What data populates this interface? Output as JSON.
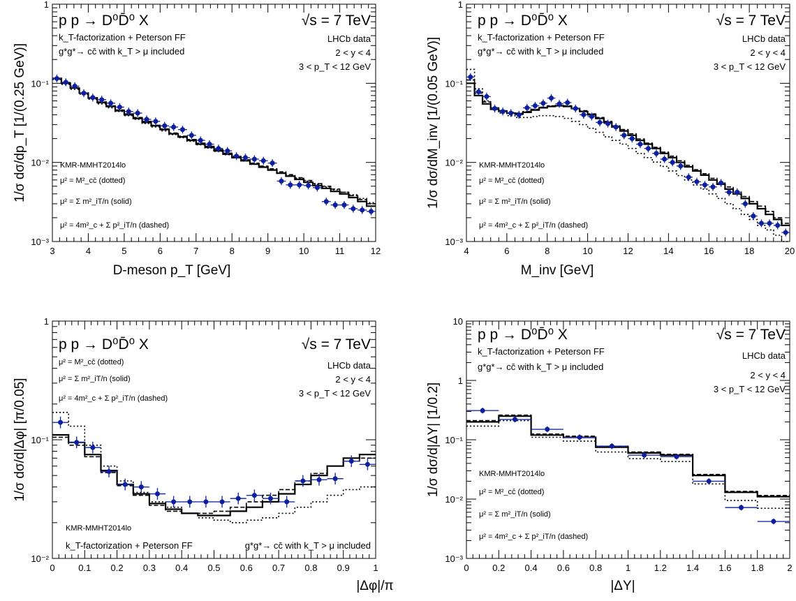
{
  "chart_data": [
    {
      "id": "pt",
      "type": "line",
      "xlabel": "D-meson p_T   [GeV]",
      "ylabel": "1/σ  dσ/dp_T   [1/(0.25 GeV)]",
      "xlim": [
        3,
        12
      ],
      "ylim": [
        0.001,
        1
      ],
      "yscale": "log",
      "xticks": [
        3,
        4,
        5,
        6,
        7,
        8,
        9,
        10,
        11,
        12
      ],
      "yticks": [
        0.001,
        0.01,
        0.1,
        1
      ],
      "ytick_labels": [
        "10⁻³",
        "10⁻²",
        "10⁻¹",
        "1"
      ],
      "grid": false,
      "annotations": {
        "process": "p p → D⁰D̄⁰ X",
        "energy": "√s = 7 TeV",
        "model_line1": "k_T-factorization + Peterson FF",
        "model_line2": "g*g*→ cc̄ with k_T > μ included",
        "data_label": "LHCb data",
        "cut_y": "2 < y < 4",
        "cut_pt": "3 < p_T < 12 GeV",
        "pdf": "KMR-MMHT2014lo",
        "scale1": "μ² = M²_cc̄ (dotted)",
        "scale2": "μ² = Σ m²_iT/n (solid)",
        "scale3": "μ² = 4m²_c + Σ p²_iT/n (dashed)"
      },
      "data": {
        "x": [
          3.125,
          3.375,
          3.625,
          3.875,
          4.125,
          4.375,
          4.625,
          4.875,
          5.125,
          5.375,
          5.625,
          5.875,
          6.125,
          6.375,
          6.625,
          6.875,
          7.125,
          7.375,
          7.625,
          7.875,
          8.125,
          8.375,
          8.625,
          8.875,
          9.125,
          9.375,
          9.625,
          9.875,
          10.125,
          10.375,
          10.625,
          10.875,
          11.125,
          11.375,
          11.625,
          11.875
        ],
        "y": [
          0.115,
          0.103,
          0.092,
          0.075,
          0.066,
          0.062,
          0.056,
          0.05,
          0.044,
          0.042,
          0.035,
          0.033,
          0.029,
          0.028,
          0.026,
          0.022,
          0.019,
          0.017,
          0.015,
          0.014,
          0.012,
          0.0115,
          0.011,
          0.0105,
          0.0098,
          0.0058,
          0.0052,
          0.0052,
          0.0051,
          0.0048,
          0.0032,
          0.0029,
          0.0029,
          0.0026,
          0.0025,
          0.0024
        ],
        "xerr": 0.125
      },
      "series": [
        {
          "style": "solid",
          "values": [
            0.115,
            0.1,
            0.087,
            0.075,
            0.065,
            0.057,
            0.051,
            0.045,
            0.04,
            0.036,
            0.032,
            0.029,
            0.026,
            0.023,
            0.021,
            0.019,
            0.017,
            0.0155,
            0.014,
            0.0127,
            0.0115,
            0.0105,
            0.0095,
            0.0087,
            0.008,
            0.0073,
            0.0067,
            0.0061,
            0.0056,
            0.0051,
            0.0047,
            0.0043,
            0.004,
            0.0036,
            0.0032,
            0.0028
          ]
        },
        {
          "style": "dashed",
          "values": [
            0.116,
            0.101,
            0.088,
            0.076,
            0.066,
            0.058,
            0.052,
            0.046,
            0.041,
            0.037,
            0.033,
            0.0295,
            0.0265,
            0.0235,
            0.0215,
            0.0195,
            0.0175,
            0.016,
            0.0145,
            0.0131,
            0.0119,
            0.0108,
            0.0098,
            0.009,
            0.0083,
            0.0076,
            0.007,
            0.0064,
            0.0059,
            0.0054,
            0.005,
            0.0046,
            0.0042,
            0.0038,
            0.0034,
            0.003
          ]
        },
        {
          "style": "dotted",
          "values": [
            0.112,
            0.097,
            0.084,
            0.073,
            0.063,
            0.055,
            0.049,
            0.044,
            0.039,
            0.035,
            0.031,
            0.028,
            0.025,
            0.0225,
            0.0205,
            0.0185,
            0.0167,
            0.0152,
            0.0138,
            0.0125,
            0.0114,
            0.0104,
            0.0095,
            0.0087,
            0.008,
            0.0074,
            0.0068,
            0.0063,
            0.0058,
            0.0053,
            0.0049,
            0.0045,
            0.0042,
            0.0039,
            0.0035,
            0.0031
          ]
        }
      ]
    },
    {
      "id": "minv",
      "type": "line",
      "xlabel": "M_inv   [GeV]",
      "ylabel": "1/σ  dσ/dM_inv   [1/(0.05 GeV)]",
      "xlim": [
        4,
        20
      ],
      "ylim": [
        0.001,
        1
      ],
      "yscale": "log",
      "xticks": [
        4,
        6,
        8,
        10,
        12,
        14,
        16,
        18,
        20
      ],
      "yticks": [
        0.001,
        0.01,
        0.1,
        1
      ],
      "ytick_labels": [
        "10⁻³",
        "10⁻²",
        "10⁻¹",
        "1"
      ],
      "grid": false,
      "annotations": {
        "process": "p p → D⁰D̄⁰ X",
        "energy": "√s = 7 TeV",
        "model_line1": "k_T-factorization + Peterson FF",
        "model_line2": "g*g*→ cc̄ with k_T > μ included",
        "data_label": "LHCb data",
        "cut_y": "2 < y < 4",
        "cut_pt": "3 < p_T < 12 GeV",
        "pdf": "KMR-MMHT2014lo",
        "scale1": "μ² = M²_cc̄ (dotted)",
        "scale2": "μ² = Σ m²_iT/n (solid)",
        "scale3": "μ² = 4m²_c + Σ p²_iT/n (dashed)"
      },
      "data": {
        "x": [
          4.2,
          4.6,
          5.0,
          5.4,
          5.8,
          6.2,
          6.6,
          7.0,
          7.4,
          7.8,
          8.2,
          8.6,
          9.0,
          9.4,
          9.8,
          10.2,
          10.6,
          11.0,
          11.4,
          11.8,
          12.2,
          12.6,
          13.0,
          13.4,
          13.8,
          14.2,
          14.6,
          15.0,
          15.4,
          15.8,
          16.2,
          16.6,
          17.0,
          17.4,
          17.8,
          18.2,
          18.6,
          19.0,
          19.4,
          19.8
        ],
        "y": [
          0.12,
          0.078,
          0.068,
          0.048,
          0.044,
          0.042,
          0.04,
          0.049,
          0.052,
          0.056,
          0.065,
          0.055,
          0.057,
          0.048,
          0.04,
          0.038,
          0.032,
          0.031,
          0.028,
          0.022,
          0.02,
          0.017,
          0.015,
          0.013,
          0.011,
          0.01,
          0.009,
          0.0065,
          0.0057,
          0.0052,
          0.0049,
          0.0055,
          0.0042,
          0.0042,
          0.003,
          0.0021,
          0.0017,
          0.0017,
          0.0016,
          0.0013
        ],
        "xerr": 0.2
      },
      "series": [
        {
          "style": "solid",
          "values": [
            0.1,
            0.07,
            0.055,
            0.047,
            0.044,
            0.042,
            0.041,
            0.043,
            0.046,
            0.049,
            0.051,
            0.052,
            0.051,
            0.048,
            0.044,
            0.04,
            0.036,
            0.032,
            0.028,
            0.025,
            0.022,
            0.019,
            0.017,
            0.015,
            0.013,
            0.0115,
            0.01,
            0.0088,
            0.0078,
            0.0069,
            0.006,
            0.0053,
            0.0046,
            0.004,
            0.0035,
            0.003,
            0.0026,
            0.0022,
            0.0019,
            0.0016
          ]
        },
        {
          "style": "dashed",
          "values": [
            0.11,
            0.075,
            0.058,
            0.049,
            0.045,
            0.043,
            0.042,
            0.044,
            0.047,
            0.05,
            0.052,
            0.053,
            0.052,
            0.049,
            0.045,
            0.041,
            0.037,
            0.033,
            0.029,
            0.026,
            0.023,
            0.0198,
            0.0175,
            0.0155,
            0.0135,
            0.012,
            0.0105,
            0.0092,
            0.0081,
            0.0072,
            0.0063,
            0.0056,
            0.0049,
            0.0043,
            0.0037,
            0.0032,
            0.0028,
            0.0024,
            0.002,
            0.0017
          ]
        },
        {
          "style": "dotted",
          "values": [
            0.15,
            0.085,
            0.06,
            0.048,
            0.042,
            0.039,
            0.037,
            0.037,
            0.038,
            0.039,
            0.039,
            0.038,
            0.036,
            0.033,
            0.03,
            0.027,
            0.024,
            0.021,
            0.019,
            0.017,
            0.015,
            0.013,
            0.0115,
            0.0101,
            0.0089,
            0.0078,
            0.0068,
            0.006,
            0.0052,
            0.0046,
            0.004,
            0.0035,
            0.003,
            0.0026,
            0.0022,
            0.0019,
            0.0016,
            0.0014,
            0.0012,
            0.001
          ]
        }
      ]
    },
    {
      "id": "dphi",
      "type": "line",
      "xlabel": "|Δφ|/π",
      "ylabel": "1/σ  dσ/d|Δφ|   [π/0.05]",
      "xlim": [
        0,
        1
      ],
      "ylim": [
        0.01,
        1
      ],
      "yscale": "log",
      "xticks": [
        0,
        0.1,
        0.2,
        0.3,
        0.4,
        0.5,
        0.6,
        0.7,
        0.8,
        0.9,
        1
      ],
      "yticks": [
        0.01,
        0.1,
        1
      ],
      "ytick_labels": [
        "10⁻²",
        "10⁻¹",
        "1"
      ],
      "grid": false,
      "annotations": {
        "process": "p p → D⁰D̄⁰ X",
        "energy": "√s = 7 TeV",
        "model_line1": "k_T-factorization + Peterson FF",
        "model_line2": "g*g*→ cc̄ with k_T > μ included",
        "data_label": "LHCb data",
        "cut_y": "2 < y < 4",
        "cut_pt": "3 < p_T < 12 GeV",
        "pdf": "KMR-MMHT2014lo",
        "scale1": "μ² = M²_cc̄ (dotted)",
        "scale2": "μ² = Σ m²_iT/n (solid)",
        "scale3": "μ² = 4m²_c + Σ p²_iT/n (dashed)"
      },
      "data": {
        "x": [
          0.025,
          0.075,
          0.125,
          0.175,
          0.225,
          0.275,
          0.325,
          0.375,
          0.425,
          0.475,
          0.525,
          0.575,
          0.625,
          0.675,
          0.725,
          0.775,
          0.825,
          0.875,
          0.925,
          0.975
        ],
        "y": [
          0.14,
          0.095,
          0.086,
          0.054,
          0.042,
          0.04,
          0.035,
          0.03,
          0.03,
          0.03,
          0.03,
          0.032,
          0.034,
          0.032,
          0.03,
          0.045,
          0.046,
          0.047,
          0.066,
          0.062
        ],
        "xerr": 0.025
      },
      "series": [
        {
          "style": "solid",
          "values": [
            0.11,
            0.095,
            0.075,
            0.055,
            0.042,
            0.035,
            0.029,
            0.026,
            0.024,
            0.023,
            0.023,
            0.025,
            0.027,
            0.03,
            0.035,
            0.042,
            0.05,
            0.06,
            0.07,
            0.075
          ]
        },
        {
          "style": "dashed",
          "values": [
            0.105,
            0.09,
            0.072,
            0.053,
            0.041,
            0.034,
            0.028,
            0.025,
            0.024,
            0.024,
            0.025,
            0.027,
            0.03,
            0.034,
            0.038,
            0.045,
            0.052,
            0.06,
            0.066,
            0.07
          ]
        },
        {
          "style": "dotted",
          "values": [
            0.17,
            0.13,
            0.09,
            0.06,
            0.045,
            0.036,
            0.03,
            0.027,
            0.024,
            0.022,
            0.021,
            0.02,
            0.021,
            0.022,
            0.024,
            0.027,
            0.03,
            0.034,
            0.038,
            0.04
          ]
        }
      ]
    },
    {
      "id": "dy",
      "type": "line",
      "xlabel": "|ΔY|",
      "ylabel": "1/σ  dσ/d|ΔY|   [1/0.2]",
      "xlim": [
        0,
        2
      ],
      "ylim": [
        0.001,
        10
      ],
      "yscale": "log",
      "xticks": [
        0,
        0.2,
        0.4,
        0.6,
        0.8,
        1,
        1.2,
        1.4,
        1.6,
        1.8,
        2
      ],
      "yticks": [
        0.001,
        0.01,
        0.1,
        1,
        10
      ],
      "ytick_labels": [
        "10⁻³",
        "10⁻²",
        "10⁻¹",
        "1",
        "10"
      ],
      "grid": false,
      "annotations": {
        "process": "p p → D⁰D̄⁰ X",
        "energy": "√s = 7 TeV",
        "model_line1": "k_T-factorization + Peterson FF",
        "model_line2": "g*g*→ cc̄ with k_T > μ included",
        "data_label": "LHCb data",
        "cut_y": "2 < y < 4",
        "cut_pt": "3 < p_T < 12 GeV",
        "pdf": "KMR-MMHT2014lo",
        "scale1": "μ² = M²_cc̄ (dotted)",
        "scale2": "μ² = Σ m²_iT/n (solid)",
        "scale3": "μ² = 4m²_c + Σ p²_iT/n (dashed)"
      },
      "data": {
        "x": [
          0.1,
          0.3,
          0.5,
          0.7,
          0.9,
          1.1,
          1.3,
          1.5,
          1.7,
          1.9
        ],
        "y": [
          0.31,
          0.22,
          0.15,
          0.11,
          0.078,
          0.055,
          0.052,
          0.02,
          0.0072,
          0.0042
        ],
        "xerr": 0.1
      },
      "series": [
        {
          "style": "solid",
          "values": [
            0.2,
            0.25,
            0.12,
            0.11,
            0.075,
            0.06,
            0.055,
            0.025,
            0.013,
            0.011
          ]
        },
        {
          "style": "dashed",
          "values": [
            0.21,
            0.26,
            0.125,
            0.115,
            0.078,
            0.062,
            0.057,
            0.026,
            0.0135,
            0.0115
          ]
        },
        {
          "style": "dotted",
          "values": [
            0.17,
            0.21,
            0.11,
            0.095,
            0.062,
            0.048,
            0.043,
            0.018,
            0.0095,
            0.007
          ]
        }
      ]
    }
  ]
}
